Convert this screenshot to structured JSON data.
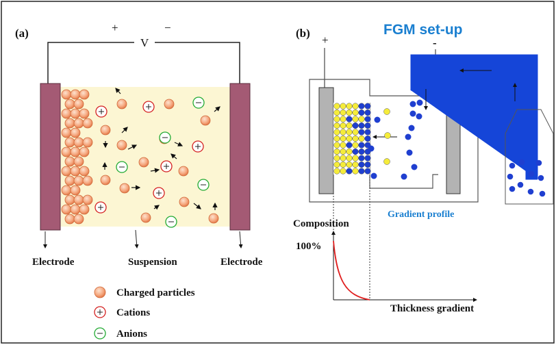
{
  "panel_a": {
    "label": "(a)",
    "positive": "+",
    "negative": "−",
    "voltage": "V",
    "left_electrode": "Electrode",
    "suspension": "Suspension",
    "right_electrode": "Electrode",
    "legend": [
      "Charged particles",
      "Cations",
      "Anions"
    ]
  },
  "panel_b": {
    "label": "(b)",
    "positive": "+",
    "negative": "-",
    "title": "FGM set-up",
    "profile_title": "Gradient profile",
    "y_axis": "Composition",
    "y_max": "100%",
    "x_axis": "Thickness gradient"
  }
}
